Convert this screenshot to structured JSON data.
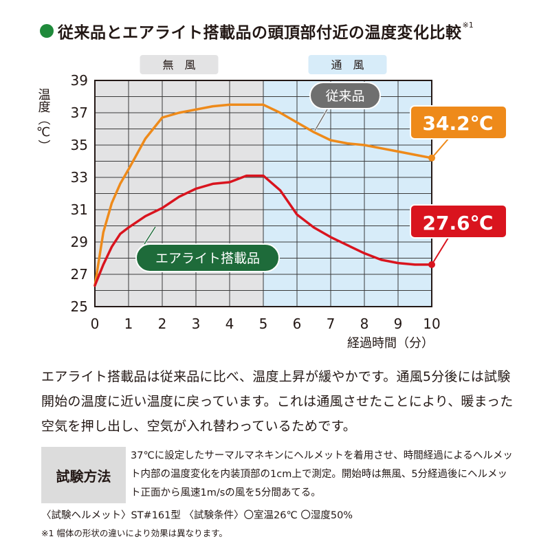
{
  "header": {
    "title": "従来品とエアライト搭載品の頭頂部付近の温度変化比較",
    "note_mark": "※1"
  },
  "chart_data": {
    "type": "line",
    "ylabel": "温度（℃）",
    "xlabel": "経過時間（分）",
    "xlim": [
      0,
      10
    ],
    "ylim": [
      25,
      39
    ],
    "x_ticks": [
      "0",
      "1",
      "2",
      "3",
      "4",
      "5",
      "6",
      "7",
      "8",
      "9",
      "10"
    ],
    "y_ticks": [
      "25",
      "27",
      "29",
      "31",
      "33",
      "35",
      "37",
      "39"
    ],
    "grid": true,
    "phases": [
      {
        "label": "無　風",
        "from": 0,
        "to": 5,
        "color": "#e3e3e4"
      },
      {
        "label": "通　風",
        "from": 5,
        "to": 10,
        "color": "#d7ecf9"
      }
    ],
    "series": [
      {
        "name": "従来品",
        "color": "#ee8a1a",
        "x": [
          0,
          0.25,
          0.5,
          0.75,
          1,
          1.5,
          2,
          2.5,
          3,
          3.5,
          4,
          4.5,
          5,
          5.5,
          6,
          6.5,
          7,
          7.5,
          8,
          8.5,
          9,
          9.5,
          10
        ],
        "y": [
          26.3,
          29.6,
          31.4,
          32.6,
          33.5,
          35.4,
          36.7,
          37.0,
          37.2,
          37.4,
          37.5,
          37.5,
          37.5,
          37.0,
          36.4,
          35.8,
          35.3,
          35.1,
          35.0,
          34.8,
          34.6,
          34.4,
          34.2
        ],
        "end_label": "34.2℃"
      },
      {
        "name": "エアライト搭載品",
        "color": "#d9141e",
        "x": [
          0,
          0.25,
          0.5,
          0.75,
          1,
          1.5,
          2,
          2.5,
          3,
          3.5,
          4,
          4.5,
          5,
          5.5,
          6,
          6.5,
          7,
          7.5,
          8,
          8.5,
          9,
          9.5,
          10
        ],
        "y": [
          26.3,
          27.6,
          28.7,
          29.5,
          29.9,
          30.6,
          31.1,
          31.8,
          32.3,
          32.6,
          32.7,
          33.1,
          33.1,
          32.2,
          30.7,
          29.9,
          29.3,
          28.8,
          28.3,
          27.9,
          27.7,
          27.6,
          27.6
        ],
        "end_label": "27.6℃"
      }
    ]
  },
  "description": "エアライト搭載品は従来品に比べ、温度上昇が緩やかです。通風5分後には試験開始の温度に近い温度に戻っています。これは通風させたことにより、暖まった空気を押し出し、空気が入れ替わっているためです。",
  "method": {
    "label": "試験方法",
    "text": "37℃に設定したサーマルマネキンにヘルメットを着用させ、時間経過によるヘルメット内部の温度変化を内装頂部の1cm上で測定。開始時は無風、5分経過後にヘルメット正面から風速1m/sの風を5分間あてる。"
  },
  "conditions": "〈試験ヘルメット〉ST#161型 〈試験条件〉〇室温26℃ 〇湿度50%",
  "footnote": "※1 帽体の形状の違いにより効果は異なります。"
}
